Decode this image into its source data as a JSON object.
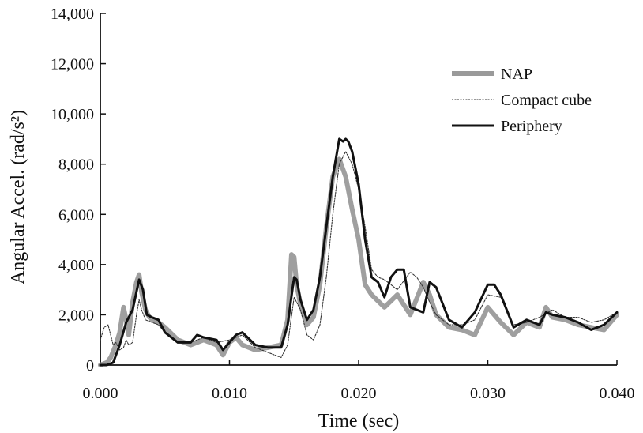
{
  "chart_data": {
    "type": "line",
    "title": "",
    "xlabel": "Time (sec)",
    "ylabel": "Angular Accel. (rad/s²)",
    "xlim": [
      0,
      0.04
    ],
    "ylim": [
      0,
      14000
    ],
    "x_ticks": [
      "0.000",
      "0.010",
      "0.020",
      "0.030",
      "0.040"
    ],
    "x_tick_values": [
      0,
      0.01,
      0.02,
      0.03,
      0.04
    ],
    "y_ticks": [
      "0",
      "2,000",
      "4,000",
      "6,000",
      "8,000",
      "10,000",
      "12,000",
      "14,000"
    ],
    "y_tick_values": [
      0,
      2000,
      4000,
      6000,
      8000,
      10000,
      12000,
      14000
    ],
    "grid": false,
    "legend_position": "top-right",
    "series": [
      {
        "name": "NAP",
        "color": "#9a9a9a",
        "style": "thick-gray",
        "x": [
          0,
          0.0005,
          0.0008,
          0.0012,
          0.0015,
          0.0018,
          0.002,
          0.0022,
          0.0025,
          0.0028,
          0.003,
          0.0032,
          0.0035,
          0.0038,
          0.004,
          0.0045,
          0.005,
          0.006,
          0.007,
          0.008,
          0.009,
          0.0095,
          0.01,
          0.0105,
          0.011,
          0.012,
          0.013,
          0.014,
          0.0145,
          0.0148,
          0.015,
          0.0152,
          0.0155,
          0.016,
          0.0165,
          0.017,
          0.0175,
          0.018,
          0.0185,
          0.019,
          0.0195,
          0.02,
          0.0205,
          0.021,
          0.022,
          0.023,
          0.024,
          0.025,
          0.0255,
          0.026,
          0.027,
          0.028,
          0.029,
          0.03,
          0.031,
          0.032,
          0.033,
          0.034,
          0.0345,
          0.035,
          0.036,
          0.037,
          0.038,
          0.039,
          0.04
        ],
        "values": [
          0,
          100,
          300,
          800,
          1300,
          2300,
          1800,
          1200,
          2500,
          3300,
          3600,
          2900,
          2200,
          1900,
          1800,
          1700,
          1500,
          1000,
          800,
          1000,
          800,
          400,
          900,
          1100,
          800,
          600,
          700,
          800,
          1800,
          4400,
          4300,
          3200,
          2400,
          1600,
          1900,
          3200,
          5500,
          7500,
          8200,
          7500,
          6200,
          5000,
          3200,
          2800,
          2300,
          2800,
          2000,
          3300,
          2800,
          2000,
          1500,
          1400,
          1200,
          2300,
          1700,
          1200,
          1700,
          1500,
          2300,
          1900,
          1800,
          1600,
          1500,
          1400,
          2000
        ]
      },
      {
        "name": "Compact cube",
        "color": "#444444",
        "style": "dotted",
        "x": [
          0,
          0.0003,
          0.0006,
          0.0008,
          0.001,
          0.0012,
          0.0015,
          0.0018,
          0.002,
          0.0022,
          0.0025,
          0.0028,
          0.003,
          0.0032,
          0.0035,
          0.004,
          0.0045,
          0.005,
          0.006,
          0.007,
          0.008,
          0.009,
          0.01,
          0.011,
          0.012,
          0.013,
          0.014,
          0.0145,
          0.015,
          0.0155,
          0.016,
          0.0165,
          0.017,
          0.0175,
          0.018,
          0.0185,
          0.019,
          0.0195,
          0.02,
          0.0205,
          0.021,
          0.0215,
          0.022,
          0.023,
          0.024,
          0.0245,
          0.025,
          0.0255,
          0.026,
          0.027,
          0.028,
          0.029,
          0.03,
          0.031,
          0.032,
          0.033,
          0.034,
          0.035,
          0.036,
          0.037,
          0.038,
          0.039,
          0.04
        ],
        "values": [
          1000,
          1500,
          1600,
          1200,
          800,
          900,
          600,
          700,
          1000,
          800,
          900,
          2000,
          2600,
          2200,
          1800,
          1700,
          1600,
          1300,
          900,
          900,
          1100,
          900,
          1000,
          1200,
          700,
          500,
          300,
          800,
          2700,
          2200,
          1200,
          1000,
          1600,
          3500,
          6000,
          8000,
          8500,
          8000,
          7000,
          5500,
          3800,
          3500,
          3400,
          3000,
          3700,
          3500,
          3100,
          2500,
          2000,
          1600,
          1600,
          1800,
          2800,
          2700,
          1600,
          1700,
          1900,
          2200,
          1900,
          1900,
          1700,
          1800,
          2100
        ]
      },
      {
        "name": "Periphery",
        "color": "#111111",
        "style": "thick-solid",
        "x": [
          0,
          0.0005,
          0.001,
          0.0015,
          0.002,
          0.0025,
          0.003,
          0.0033,
          0.0036,
          0.004,
          0.0045,
          0.005,
          0.006,
          0.007,
          0.0075,
          0.008,
          0.009,
          0.0095,
          0.01,
          0.0105,
          0.011,
          0.012,
          0.013,
          0.014,
          0.0145,
          0.015,
          0.0152,
          0.0155,
          0.016,
          0.0165,
          0.017,
          0.0175,
          0.018,
          0.0185,
          0.0188,
          0.019,
          0.0192,
          0.0195,
          0.02,
          0.0205,
          0.021,
          0.0215,
          0.022,
          0.0225,
          0.023,
          0.0235,
          0.024,
          0.025,
          0.0255,
          0.026,
          0.027,
          0.028,
          0.029,
          0.03,
          0.0305,
          0.031,
          0.032,
          0.033,
          0.034,
          0.0345,
          0.035,
          0.036,
          0.037,
          0.038,
          0.039,
          0.04
        ],
        "values": [
          0,
          0,
          100,
          800,
          1700,
          2200,
          3400,
          3000,
          2000,
          1900,
          1800,
          1300,
          900,
          900,
          1200,
          1100,
          1000,
          600,
          900,
          1200,
          1300,
          800,
          700,
          700,
          1600,
          3500,
          3400,
          2600,
          1800,
          2200,
          3500,
          5500,
          7500,
          9000,
          8900,
          9000,
          8900,
          8500,
          7200,
          5000,
          3500,
          3300,
          2700,
          3500,
          3800,
          3800,
          2300,
          2100,
          3300,
          3100,
          1800,
          1500,
          2100,
          3200,
          3200,
          2800,
          1500,
          1800,
          1600,
          2100,
          2000,
          1900,
          1700,
          1400,
          1600,
          2100
        ]
      }
    ]
  }
}
